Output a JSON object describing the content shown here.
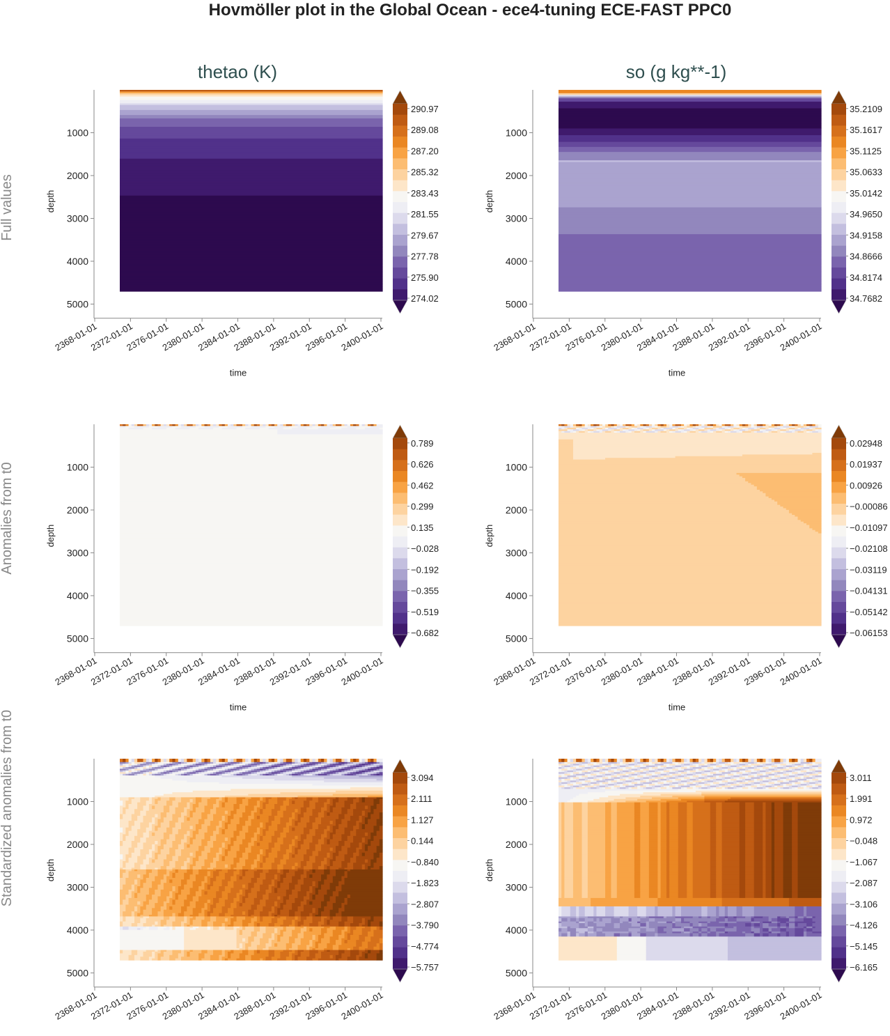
{
  "figure": {
    "title": "Hovmöller plot in the Global Ocean - ece4-tuning ECE-FAST PPC0",
    "columns": [
      "thetao (K)",
      "so (g kg**-1)"
    ],
    "rows": [
      "Full values",
      "Anomalies from t0",
      "Standardized anomalies from t0"
    ]
  },
  "palette": [
    "#2d0a4e",
    "#3f1a6d",
    "#51318a",
    "#65499c",
    "#7a64ad",
    "#9287bd",
    "#aaa3cf",
    "#c3bfdf",
    "#dcdaec",
    "#eeeef4",
    "#f7f6f3",
    "#fde6c9",
    "#fdd3a0",
    "#fcbd72",
    "#f8a344",
    "#ea8723",
    "#d6701b",
    "#bf5b13",
    "#a4490c",
    "#7f3b08"
  ],
  "chart_data": [
    {
      "type": "heatmap",
      "panel": "thetao full values",
      "title": "thetao (K)",
      "row_label": "Full values",
      "xlabel": "time",
      "ylabel": "depth",
      "x_tick_labels": [
        "2368-01-01",
        "2372-01-01",
        "2376-01-01",
        "2380-01-01",
        "2384-01-01",
        "2388-01-01",
        "2392-01-01",
        "2396-01-01",
        "2400-01-01"
      ],
      "y_ticks": [
        1000,
        2000,
        3000,
        4000,
        5000
      ],
      "y_tick_labels": [
        "1000",
        "2000",
        "3000",
        "4000",
        "5000"
      ],
      "ylim": [
        5200,
        0
      ],
      "data_depth_max": 4700,
      "colorbar_labels": [
        "290.97",
        "289.08",
        "287.20",
        "285.32",
        "283.43",
        "281.55",
        "279.67",
        "277.78",
        "275.90",
        "274.02"
      ],
      "depth_profile": [
        [
          0,
          19
        ],
        [
          40,
          17
        ],
        [
          80,
          14
        ],
        [
          120,
          12
        ],
        [
          170,
          11
        ],
        [
          220,
          10
        ],
        [
          300,
          9
        ],
        [
          370,
          8
        ],
        [
          470,
          7
        ],
        [
          570,
          6
        ],
        [
          680,
          5
        ],
        [
          850,
          4
        ],
        [
          1150,
          3
        ],
        [
          1600,
          2
        ],
        [
          2450,
          1
        ],
        [
          4700,
          0
        ]
      ]
    },
    {
      "type": "heatmap",
      "panel": "so full values",
      "title": "so (g kg**-1)",
      "row_label": "Full values",
      "xlabel": "time",
      "ylabel": "depth",
      "x_tick_labels": [
        "2368-01-01",
        "2372-01-01",
        "2376-01-01",
        "2380-01-01",
        "2384-01-01",
        "2388-01-01",
        "2392-01-01",
        "2396-01-01",
        "2400-01-01"
      ],
      "y_ticks": [
        1000,
        2000,
        3000,
        4000,
        5000
      ],
      "y_tick_labels": [
        "1000",
        "2000",
        "3000",
        "4000",
        "5000"
      ],
      "ylim": [
        5200,
        0
      ],
      "data_depth_max": 4700,
      "colorbar_labels": [
        "35.2109",
        "35.1617",
        "35.1125",
        "35.0633",
        "35.0142",
        "34.9650",
        "34.9158",
        "34.8666",
        "34.8174",
        "34.7682"
      ],
      "depth_profile": [
        [
          0,
          17
        ],
        [
          60,
          15
        ],
        [
          110,
          12
        ],
        [
          150,
          8
        ],
        [
          200,
          5
        ],
        [
          260,
          3
        ],
        [
          450,
          1
        ],
        [
          900,
          0
        ],
        [
          1050,
          1
        ],
        [
          1200,
          2
        ],
        [
          1330,
          3
        ],
        [
          1450,
          4
        ],
        [
          1650,
          5
        ],
        [
          1700,
          7
        ],
        [
          2750,
          6
        ],
        [
          3350,
          5
        ],
        [
          4700,
          4
        ]
      ]
    },
    {
      "type": "heatmap",
      "panel": "thetao anomalies",
      "row_label": "Anomalies from t0",
      "xlabel": "time",
      "ylabel": "depth",
      "x_tick_labels": [
        "2368-01-01",
        "2372-01-01",
        "2376-01-01",
        "2380-01-01",
        "2384-01-01",
        "2388-01-01",
        "2392-01-01",
        "2396-01-01",
        "2400-01-01"
      ],
      "y_ticks": [
        1000,
        2000,
        3000,
        4000,
        5000
      ],
      "y_tick_labels": [
        "1000",
        "2000",
        "3000",
        "4000",
        "5000"
      ],
      "ylim": [
        5200,
        0
      ],
      "data_depth_max": 4700,
      "colorbar_labels": [
        "0.789",
        "0.626",
        "0.462",
        "0.299",
        "0.135",
        "−0.028",
        "−0.192",
        "−0.355",
        "−0.519",
        "−0.682"
      ]
    },
    {
      "type": "heatmap",
      "panel": "so anomalies",
      "row_label": "Anomalies from t0",
      "xlabel": "time",
      "ylabel": "depth",
      "x_tick_labels": [
        "2368-01-01",
        "2372-01-01",
        "2376-01-01",
        "2380-01-01",
        "2384-01-01",
        "2388-01-01",
        "2392-01-01",
        "2396-01-01",
        "2400-01-01"
      ],
      "y_ticks": [
        1000,
        2000,
        3000,
        4000,
        5000
      ],
      "y_tick_labels": [
        "1000",
        "2000",
        "3000",
        "4000",
        "5000"
      ],
      "ylim": [
        5200,
        0
      ],
      "data_depth_max": 4700,
      "colorbar_labels": [
        "0.02948",
        "0.01937",
        "0.00926",
        "−0.00086",
        "−0.01097",
        "−0.02108",
        "−0.03119",
        "−0.04131",
        "−0.05142",
        "−0.06153"
      ]
    },
    {
      "type": "heatmap",
      "panel": "thetao standardized anomalies",
      "row_label": "Standardized anomalies from t0",
      "xlabel": "time",
      "ylabel": "depth",
      "x_tick_labels": [
        "2368-01-01",
        "2372-01-01",
        "2376-01-01",
        "2380-01-01",
        "2384-01-01",
        "2388-01-01",
        "2392-01-01",
        "2396-01-01",
        "2400-01-01"
      ],
      "y_ticks": [
        1000,
        2000,
        3000,
        4000,
        5000
      ],
      "y_tick_labels": [
        "1000",
        "2000",
        "3000",
        "4000",
        "5000"
      ],
      "ylim": [
        5200,
        0
      ],
      "data_depth_max": 4700,
      "colorbar_labels": [
        "3.094",
        "2.111",
        "1.127",
        "0.144",
        "−0.840",
        "−1.823",
        "−2.807",
        "−3.790",
        "−4.774",
        "−5.757"
      ]
    },
    {
      "type": "heatmap",
      "panel": "so standardized anomalies",
      "row_label": "Standardized anomalies from t0",
      "xlabel": "time",
      "ylabel": "depth",
      "x_tick_labels": [
        "2368-01-01",
        "2372-01-01",
        "2376-01-01",
        "2380-01-01",
        "2384-01-01",
        "2388-01-01",
        "2392-01-01",
        "2396-01-01",
        "2400-01-01"
      ],
      "y_ticks": [
        1000,
        2000,
        3000,
        4000,
        5000
      ],
      "y_tick_labels": [
        "1000",
        "2000",
        "3000",
        "4000",
        "5000"
      ],
      "ylim": [
        5200,
        0
      ],
      "data_depth_max": 4700,
      "colorbar_labels": [
        "3.011",
        "1.991",
        "0.972",
        "−0.048",
        "−1.067",
        "−2.087",
        "−3.106",
        "−4.126",
        "−5.145",
        "−6.165"
      ]
    }
  ]
}
